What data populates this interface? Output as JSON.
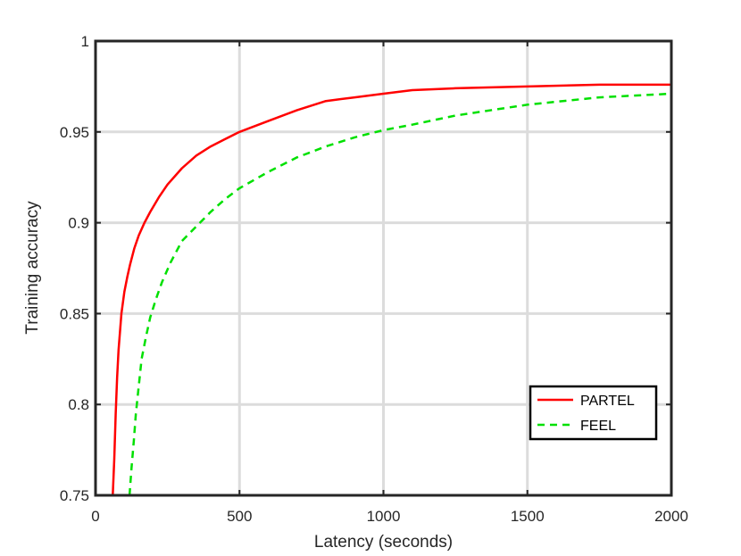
{
  "chart_data": {
    "type": "line",
    "title": "",
    "xlabel": "Latency (seconds)",
    "ylabel": "Training accuracy",
    "xlim": [
      0,
      2000
    ],
    "ylim": [
      0.75,
      1
    ],
    "grid": true,
    "legend_position": "bottom-right",
    "x_ticks": [
      {
        "value": 0,
        "label": "0"
      },
      {
        "value": 500,
        "label": "500"
      },
      {
        "value": 1000,
        "label": "1000"
      },
      {
        "value": 1500,
        "label": "1500"
      },
      {
        "value": 2000,
        "label": "2000"
      }
    ],
    "y_ticks": [
      {
        "value": 0.75,
        "label": "0.75"
      },
      {
        "value": 0.8,
        "label": "0.8"
      },
      {
        "value": 0.85,
        "label": "0.85"
      },
      {
        "value": 0.9,
        "label": "0.9"
      },
      {
        "value": 0.95,
        "label": "0.95"
      },
      {
        "value": 1,
        "label": "1"
      }
    ],
    "series": [
      {
        "name": "PARTEL",
        "color": "#ff0000",
        "style": "solid",
        "x": [
          60,
          65,
          70,
          75,
          80,
          90,
          100,
          110,
          120,
          135,
          150,
          170,
          190,
          220,
          250,
          300,
          350,
          400,
          450,
          500,
          600,
          700,
          800,
          900,
          1000,
          1100,
          1250,
          1500,
          1750,
          2000
        ],
        "y": [
          0.75,
          0.77,
          0.795,
          0.815,
          0.83,
          0.85,
          0.862,
          0.87,
          0.877,
          0.886,
          0.893,
          0.9,
          0.906,
          0.914,
          0.921,
          0.93,
          0.937,
          0.942,
          0.946,
          0.95,
          0.956,
          0.962,
          0.967,
          0.969,
          0.971,
          0.973,
          0.974,
          0.975,
          0.976,
          0.976
        ]
      },
      {
        "name": "FEEL",
        "color": "#00e000",
        "style": "dashed",
        "x": [
          118,
          125,
          133,
          140,
          150,
          160,
          175,
          190,
          210,
          230,
          260,
          300,
          350,
          400,
          450,
          500,
          600,
          700,
          800,
          900,
          1000,
          1100,
          1250,
          1500,
          1750,
          2000
        ],
        "y": [
          0.75,
          0.765,
          0.78,
          0.795,
          0.81,
          0.825,
          0.837,
          0.848,
          0.858,
          0.867,
          0.878,
          0.89,
          0.898,
          0.906,
          0.913,
          0.919,
          0.928,
          0.936,
          0.942,
          0.947,
          0.951,
          0.954,
          0.959,
          0.965,
          0.969,
          0.971
        ]
      }
    ]
  }
}
